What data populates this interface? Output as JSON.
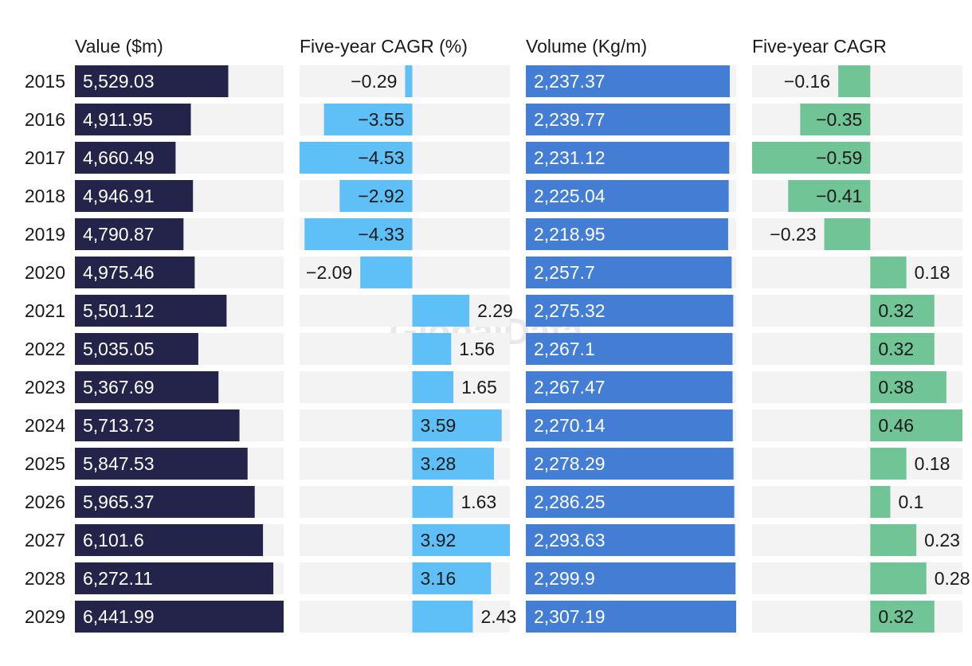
{
  "chart_data": {
    "type": "bar",
    "watermark": "GlobalData",
    "categories": [
      "2015",
      "2016",
      "2017",
      "2018",
      "2019",
      "2020",
      "2021",
      "2022",
      "2023",
      "2024",
      "2025",
      "2026",
      "2027",
      "2028",
      "2029"
    ],
    "series": [
      {
        "name": "Value ($m)",
        "values": [
          5529.03,
          4911.95,
          4660.49,
          4946.91,
          4790.87,
          4975.46,
          5501.12,
          5035.05,
          5367.69,
          5713.73,
          5847.53,
          5965.37,
          6101.6,
          6272.11,
          6441.99
        ],
        "labels": [
          "5,529.03",
          "4,911.95",
          "4,660.49",
          "4,946.91",
          "4,790.87",
          "4,975.46",
          "5,501.12",
          "5,035.05",
          "5,367.69",
          "5,713.73",
          "5,847.53",
          "5,965.37",
          "6,101.6",
          "6,272.11",
          "6,441.99"
        ],
        "color": "#24234a",
        "xlim": [
          3000,
          6441.99
        ]
      },
      {
        "name": "Five-year CAGR (%)",
        "values": [
          -0.29,
          -3.55,
          -4.53,
          -2.92,
          -4.33,
          -2.09,
          2.29,
          1.56,
          1.65,
          3.59,
          3.28,
          1.63,
          3.92,
          3.16,
          2.43
        ],
        "labels": [
          "−0.29",
          "−3.55",
          "−4.53",
          "−2.92",
          "−4.33",
          "−2.09",
          "2.29",
          "1.56",
          "1.65",
          "3.59",
          "3.28",
          "1.63",
          "3.92",
          "3.16",
          "2.43"
        ],
        "color": "#5fbff7",
        "xlim": [
          -4.53,
          3.92
        ]
      },
      {
        "name": "Volume (Kg/m)",
        "values": [
          2237.37,
          2239.77,
          2231.12,
          2225.04,
          2218.95,
          2257.7,
          2275.32,
          2267.1,
          2267.47,
          2270.14,
          2278.29,
          2286.25,
          2293.63,
          2299.9,
          2307.19
        ],
        "labels": [
          "2,237.37",
          "2,239.77",
          "2,231.12",
          "2,225.04",
          "2,218.95",
          "2,257.7",
          "2,275.32",
          "2,267.1",
          "2,267.47",
          "2,270.14",
          "2,278.29",
          "2,286.25",
          "2,293.63",
          "2,299.9",
          "2,307.19"
        ],
        "color": "#437ed4",
        "xlim": [
          0,
          2307.19
        ]
      },
      {
        "name": "Five-year CAGR",
        "values": [
          -0.16,
          -0.35,
          -0.59,
          -0.41,
          -0.23,
          0.18,
          0.32,
          0.32,
          0.38,
          0.46,
          0.18,
          0.1,
          0.23,
          0.28,
          0.32
        ],
        "labels": [
          "−0.16",
          "−0.35",
          "−0.59",
          "−0.41",
          "−0.23",
          "0.18",
          "0.32",
          "0.32",
          "0.38",
          "0.46",
          "0.18",
          "0.1",
          "0.23",
          "0.28",
          "0.32"
        ],
        "color": "#71c495",
        "xlim": [
          -0.59,
          0.46
        ]
      }
    ]
  }
}
